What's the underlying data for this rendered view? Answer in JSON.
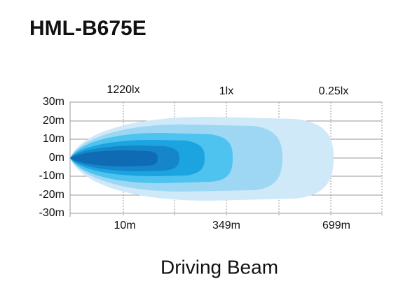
{
  "title": "HML-B675E",
  "illuminance_labels": [
    "1220lx",
    "1lx",
    "0.25lx"
  ],
  "y_labels": [
    "30m",
    "20m",
    "10m",
    "0m",
    "-10m",
    "-20m",
    "-30m"
  ],
  "distance_labels": [
    "10m",
    "349m",
    "699m"
  ],
  "caption": "Driving Beam"
}
